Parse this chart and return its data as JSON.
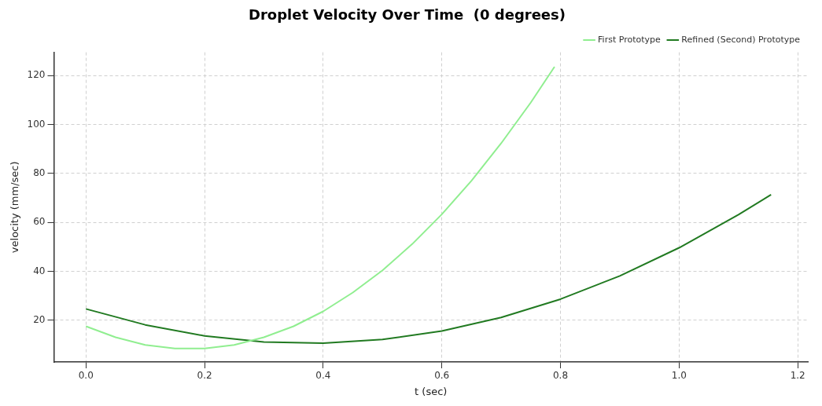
{
  "chart_data": {
    "type": "line",
    "title": "Droplet Velocity Over Time  (0 degrees)",
    "xlabel": "t (sec)",
    "ylabel": "velocity (mm/sec)",
    "xlim": [
      -0.054,
      1.217
    ],
    "ylim": [
      2.9,
      129.5
    ],
    "xticks": [
      {
        "value": 0,
        "label": "0.0"
      },
      {
        "value": 0.2,
        "label": "0.2"
      },
      {
        "value": 0.4,
        "label": "0.4"
      },
      {
        "value": 0.6,
        "label": "0.6"
      },
      {
        "value": 0.8,
        "label": "0.8"
      },
      {
        "value": 1,
        "label": "1.0"
      },
      {
        "value": 1.2,
        "label": "1.2"
      }
    ],
    "yticks": [
      20,
      40,
      60,
      80,
      100,
      120
    ],
    "grid": true,
    "legend": "top right",
    "series": [
      {
        "name": "First Prototype",
        "color": "#90ee90",
        "x": [
          0,
          0.05,
          0.1,
          0.15,
          0.2,
          0.25,
          0.3,
          0.35,
          0.4,
          0.45,
          0.5,
          0.55,
          0.6,
          0.65,
          0.7,
          0.75,
          0.79
        ],
        "values": [
          17.5,
          13.0,
          9.9,
          8.4,
          8.4,
          9.9,
          13.0,
          17.5,
          23.6,
          31.3,
          40.4,
          51.1,
          63.3,
          77.0,
          92.3,
          109.0,
          123.6
        ]
      },
      {
        "name": "Refined (Second) Prototype",
        "color": "#217a21",
        "x": [
          0,
          0.1,
          0.2,
          0.3,
          0.4,
          0.5,
          0.6,
          0.7,
          0.8,
          0.9,
          1.0,
          1.1,
          1.155
        ],
        "values": [
          24.6,
          18.1,
          13.6,
          11.1,
          10.6,
          12.1,
          15.6,
          21.1,
          28.6,
          38.1,
          49.6,
          63.1,
          71.3
        ]
      }
    ]
  }
}
